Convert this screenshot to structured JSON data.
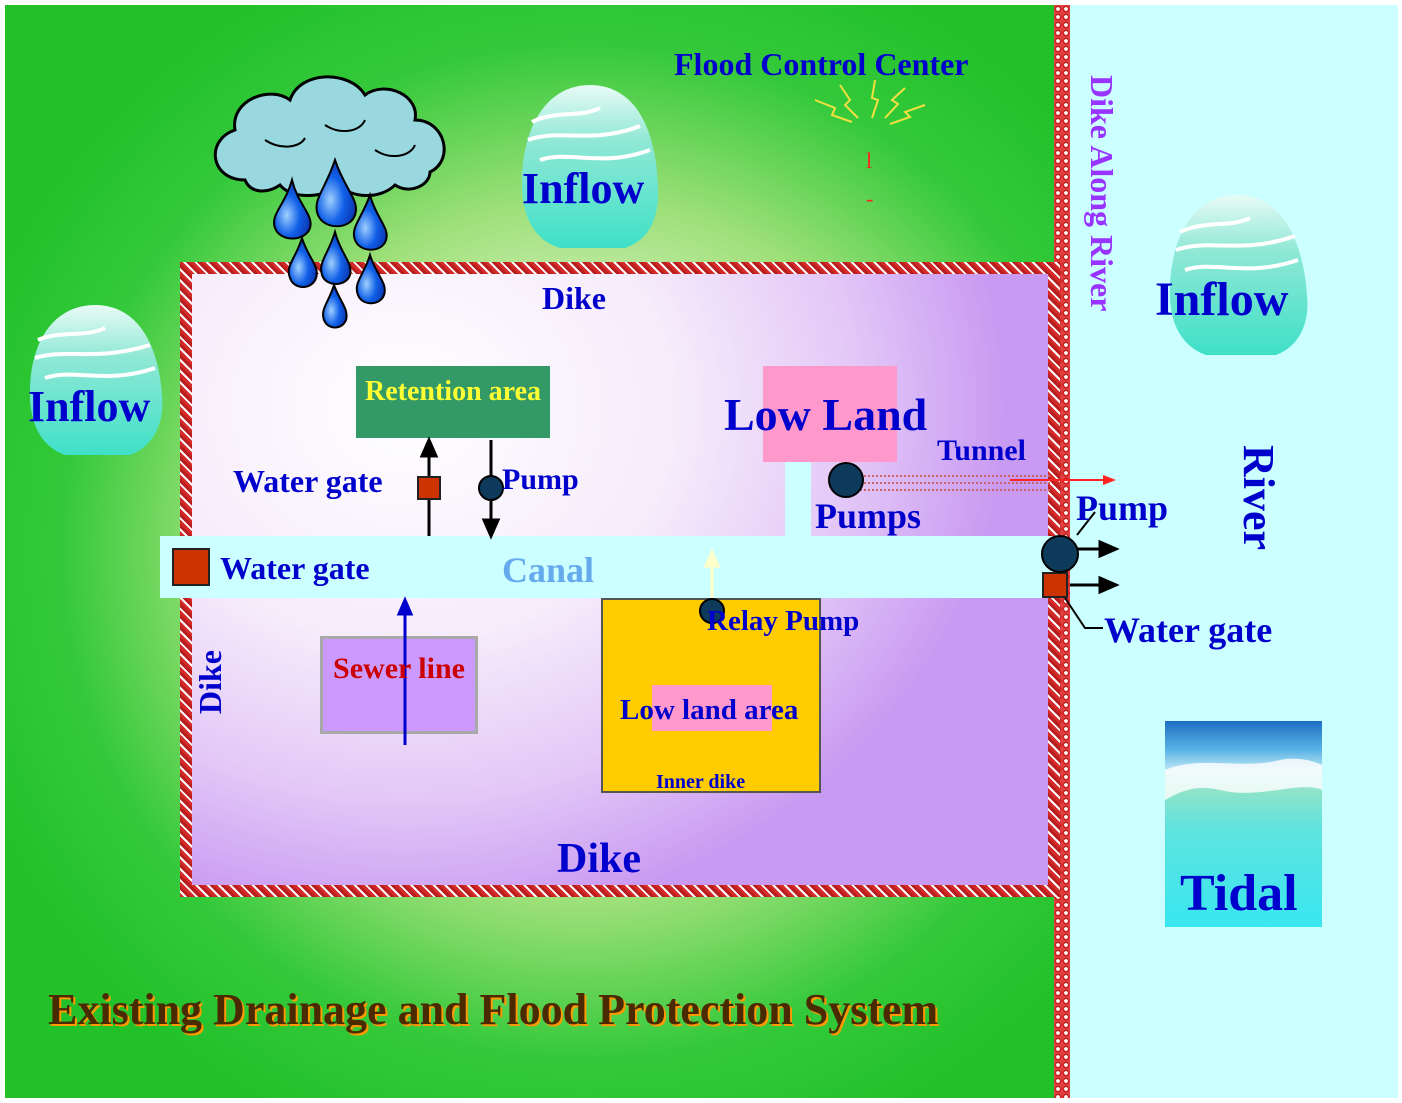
{
  "diagram": {
    "title": "Existing Drainage and Flood Protection System",
    "flood_control_center": "Flood Control Center",
    "dike_along_river": "Dike Along River",
    "inflow_label": "Inflow",
    "dike_label": "Dike",
    "retention_area": "Retention area",
    "low_land": "Low Land",
    "tunnel": "Tunnel",
    "water_gate": "Water gate",
    "pump": "Pump",
    "pumps": "Pumps",
    "canal": "Canal",
    "relay_pump": "Relay Pump",
    "sewer_line": "Sewer line",
    "low_land_area": "Low land area",
    "inner_dike": "Inner dike",
    "river": "River",
    "tidal": "Tidal",
    "flood_center_glyph": "l",
    "flood_center_dash": "-"
  },
  "colors": {
    "land": "#22c12a",
    "river": "#ccffff",
    "dike": "#cc2b2b",
    "label_blue": "#0000cc",
    "canal_text": "#66aaee",
    "river_dike_text": "#9933ff",
    "retention_text": "#ffff33",
    "sewer_text": "#cc0000",
    "title_text": "#4a2a00"
  }
}
